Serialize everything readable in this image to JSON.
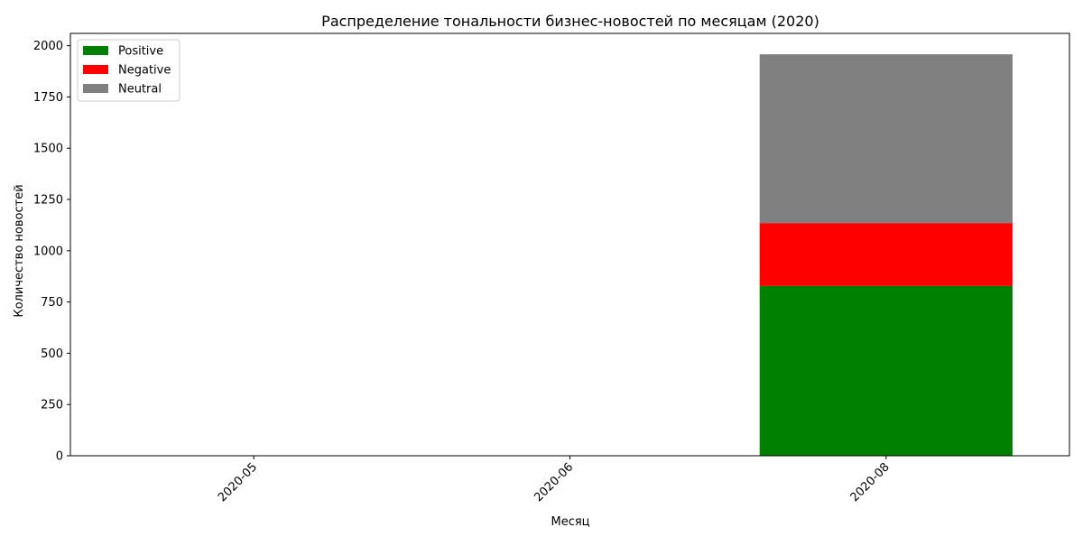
{
  "chart_data": {
    "type": "bar",
    "stacked": true,
    "title": "Распределение тональности бизнес-новостей по месяцам (2020)",
    "xlabel": "Месяц",
    "ylabel": "Количество новостей",
    "categories": [
      "2020-05",
      "2020-06",
      "2020-08"
    ],
    "series": [
      {
        "name": "Positive",
        "color": "#008000",
        "values": [
          0,
          0,
          828
        ]
      },
      {
        "name": "Negative",
        "color": "#ff0000",
        "values": [
          0,
          0,
          307
        ]
      },
      {
        "name": "Neutral",
        "color": "#808080",
        "values": [
          0,
          0,
          823
        ]
      }
    ],
    "ylim": [
      0,
      2060
    ],
    "yticks": [
      0,
      250,
      500,
      750,
      1000,
      1250,
      1500,
      1750,
      2000
    ],
    "grid": false,
    "legend": "top-left"
  }
}
